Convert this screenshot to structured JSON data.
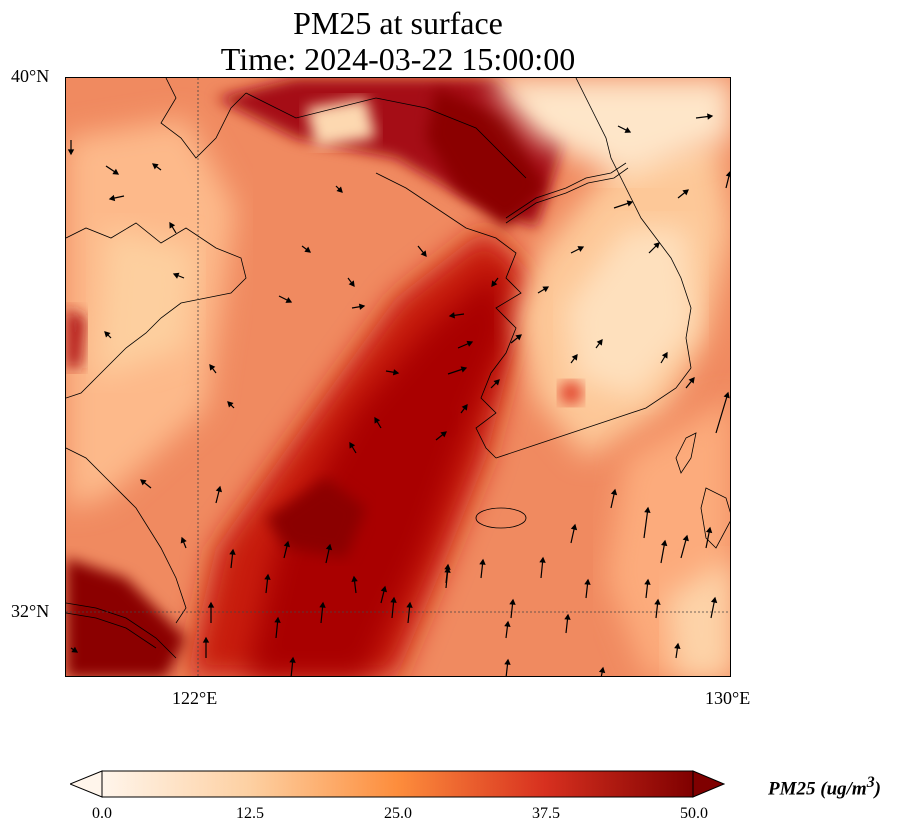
{
  "title": {
    "line1": "PM25 at surface",
    "line2": "Time: 2024-03-22 15:00:00"
  },
  "map": {
    "lon_range": [
      119,
      130
    ],
    "lat_range": [
      30.8,
      40
    ],
    "lat_ticks": [
      "40°N",
      "32°N"
    ],
    "lon_ticks": [
      "122°E",
      "130°E"
    ],
    "gridlines": {
      "lon": 122,
      "lat": 32,
      "style": "dotted"
    },
    "colors": {
      "low": "#fff5eb",
      "mid": "#fdae6b",
      "high": "#e6550d",
      "max": "#8b0000"
    }
  },
  "colorbar": {
    "label": "PM25 (ug/m",
    "label_sup": "3",
    "label_close": ")",
    "ticks": [
      "0.0",
      "12.5",
      "25.0",
      "37.5",
      "50.0"
    ],
    "min": 0,
    "max": 50,
    "extend": "both",
    "colormap": "OrRd"
  }
}
